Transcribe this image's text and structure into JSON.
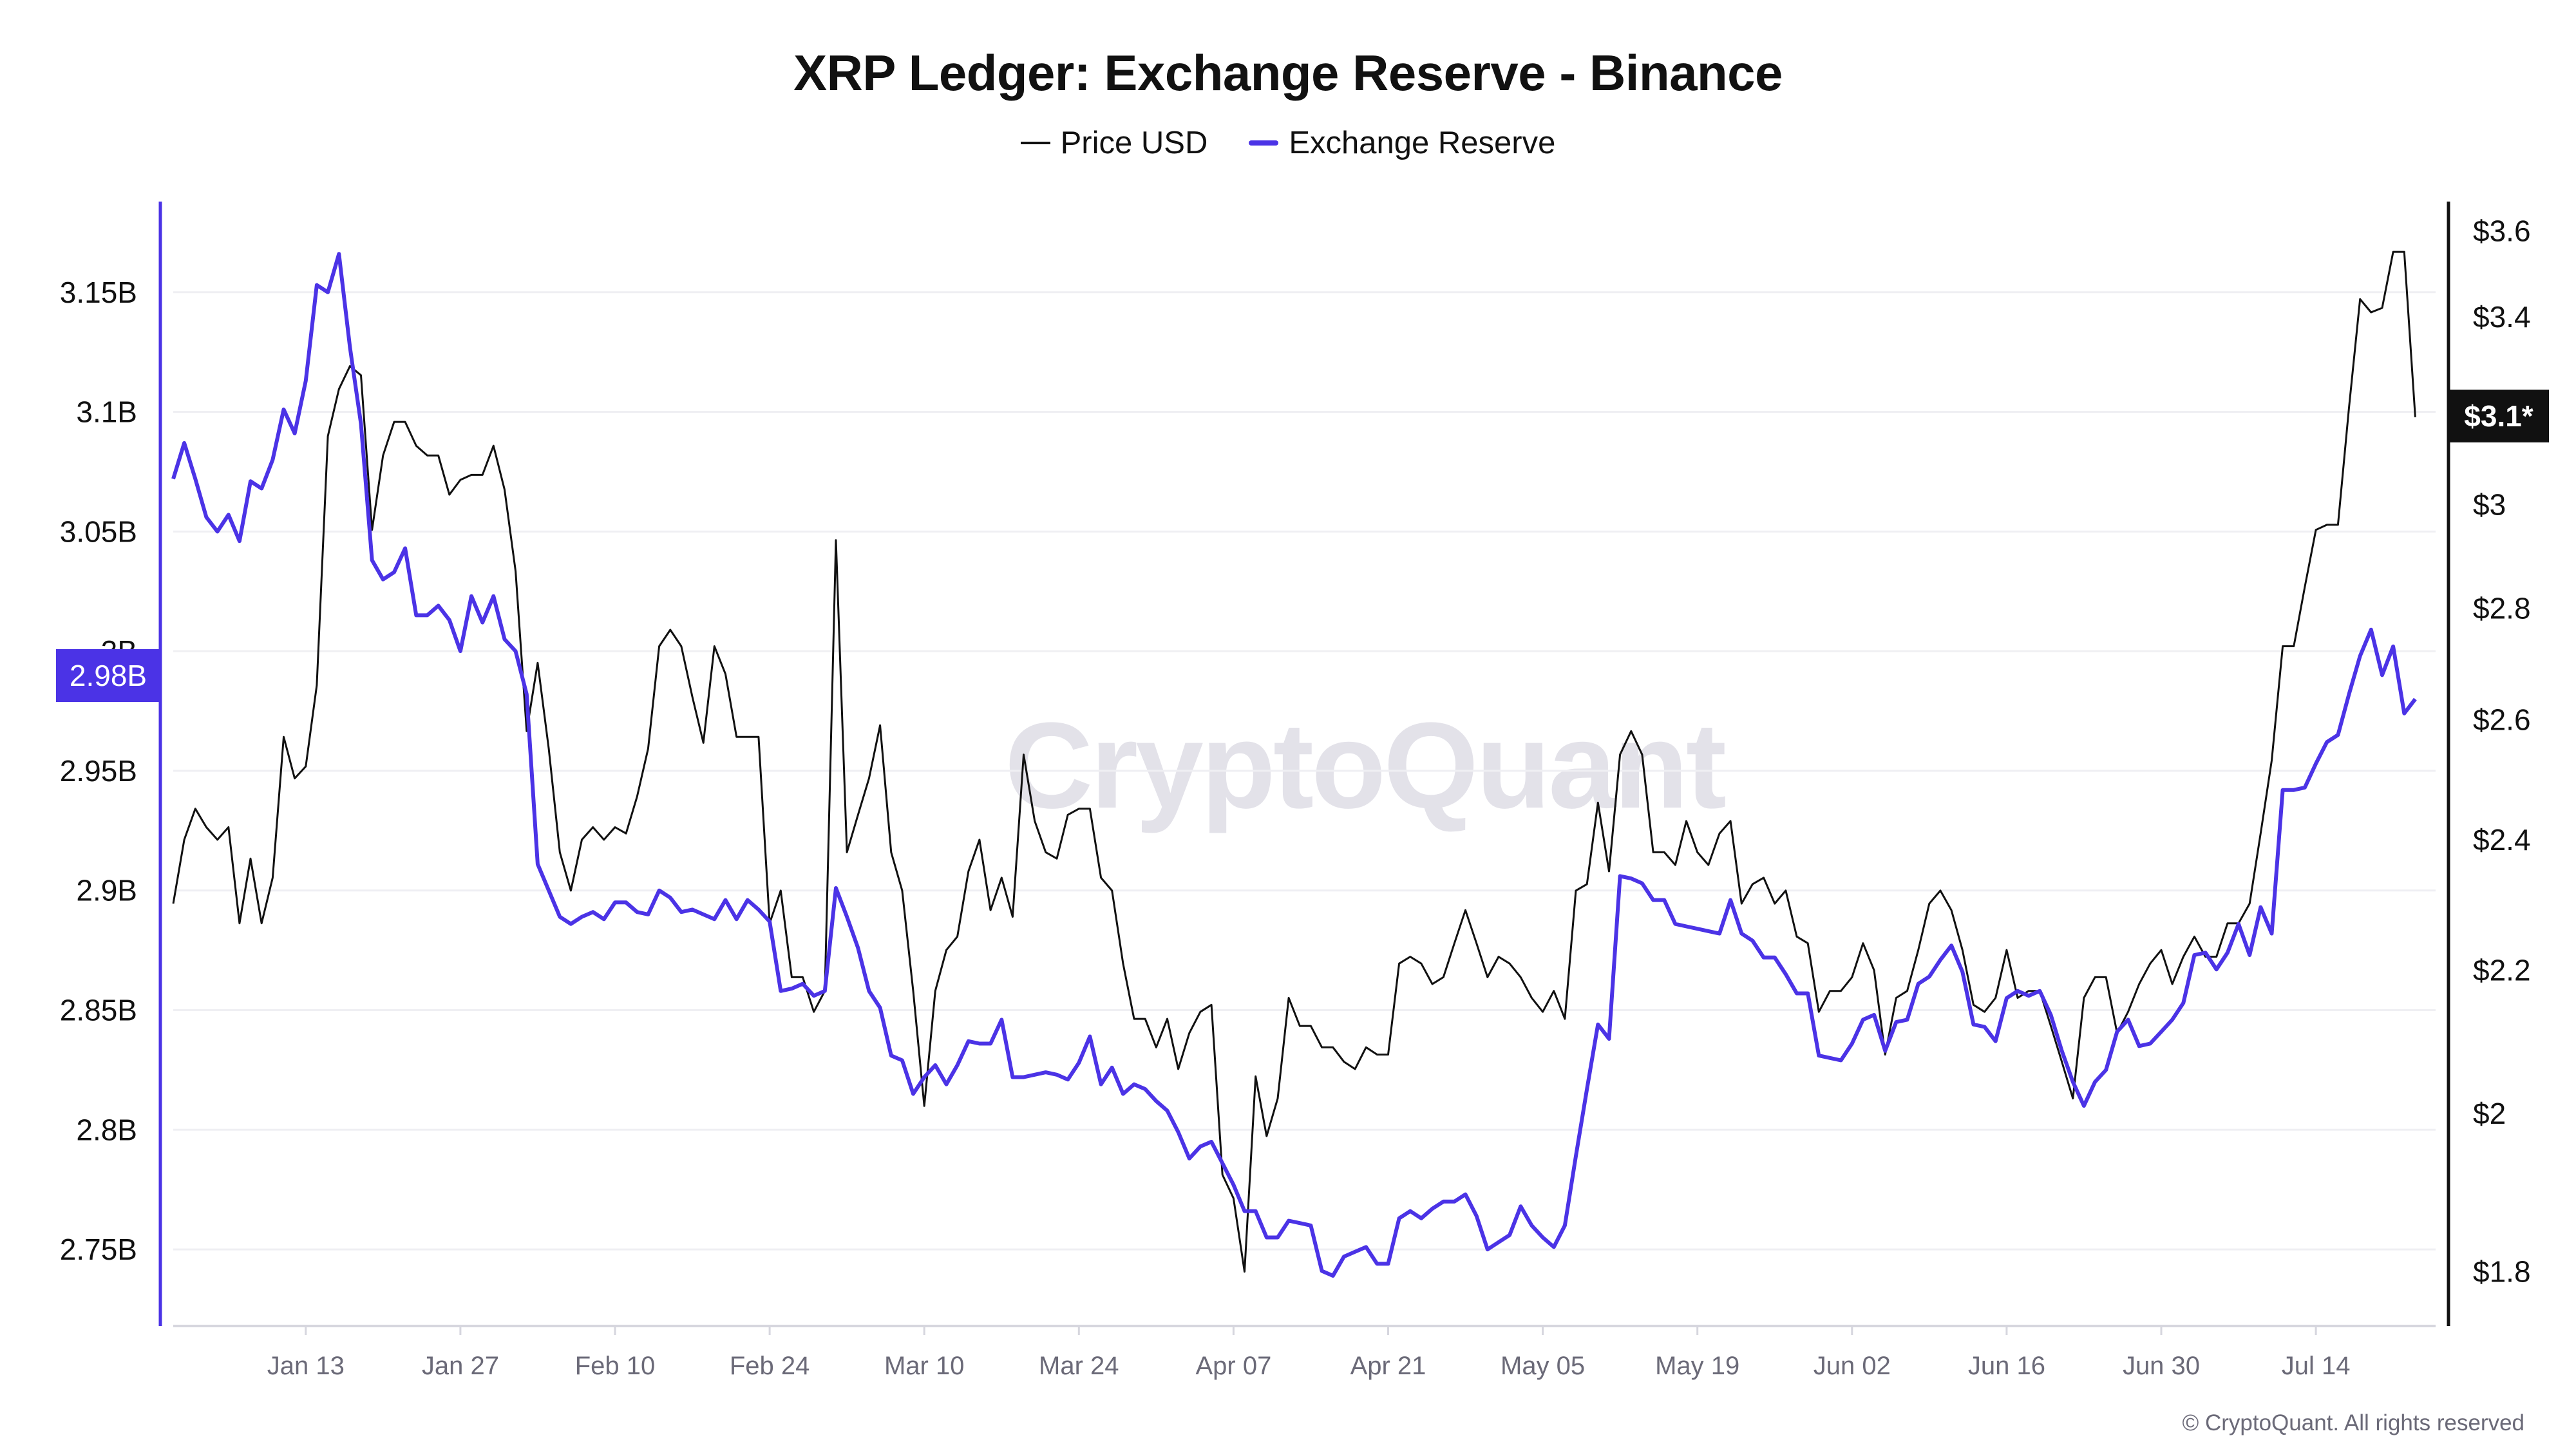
{
  "chart_data": {
    "type": "line",
    "title": "XRP Ledger: Exchange Reserve - Binance",
    "legend_position": "top-center",
    "grid": "horizontal",
    "watermark": "CryptoQuant",
    "copyright": "© CryptoQuant. All rights reserved",
    "colors": {
      "price": "#111111",
      "reserve": "#4b33e6"
    },
    "x_ticks": [
      "Jan 13",
      "Jan 27",
      "Feb 10",
      "Feb 24",
      "Mar 10",
      "Mar 24",
      "Apr 07",
      "Apr 21",
      "May 05",
      "May 19",
      "Jun 02",
      "Jun 16",
      "Jun 30",
      "Jul 14"
    ],
    "left_axis": {
      "ticks": [
        3.15,
        3.1,
        3.05,
        3.0,
        2.95,
        2.9,
        2.85,
        2.8,
        2.75
      ],
      "tick_labels": [
        "3.15B",
        "3.1B",
        "3.05B",
        "3B",
        "2.95B",
        "2.9B",
        "2.85B",
        "2.8B",
        "2.75B"
      ],
      "ylim": [
        2.718,
        3.186
      ],
      "unit": "B",
      "current_label": "2.98B"
    },
    "right_axis": {
      "scale": "log",
      "ticks": [
        3.6,
        3.4,
        3.0,
        2.8,
        2.6,
        2.4,
        2.2,
        2.0,
        1.8
      ],
      "tick_labels": [
        "$3.6",
        "$3.4",
        "$3",
        "$2.8",
        "$2.6",
        "$2.4",
        "$2.2",
        "$2",
        "$1.8"
      ],
      "ylim": [
        1.736,
        3.66
      ],
      "current_label": "$3.1*"
    },
    "x": [
      "Jan 1",
      "Jan 2",
      "Jan 3",
      "Jan 4",
      "Jan 5",
      "Jan 6",
      "Jan 7",
      "Jan 8",
      "Jan 9",
      "Jan 10",
      "Jan 11",
      "Jan 12",
      "Jan 13",
      "Jan 14",
      "Jan 15",
      "Jan 16",
      "Jan 17",
      "Jan 18",
      "Jan 19",
      "Jan 20",
      "Jan 21",
      "Jan 22",
      "Jan 23",
      "Jan 24",
      "Jan 25",
      "Jan 26",
      "Jan 27",
      "Jan 28",
      "Jan 29",
      "Jan 30",
      "Jan 31",
      "Feb 1",
      "Feb 2",
      "Feb 3",
      "Feb 4",
      "Feb 5",
      "Feb 6",
      "Feb 7",
      "Feb 8",
      "Feb 9",
      "Feb 10",
      "Feb 11",
      "Feb 12",
      "Feb 13",
      "Feb 14",
      "Feb 15",
      "Feb 16",
      "Feb 17",
      "Feb 18",
      "Feb 19",
      "Feb 20",
      "Feb 21",
      "Feb 22",
      "Feb 23",
      "Feb 24",
      "Feb 25",
      "Feb 26",
      "Feb 27",
      "Feb 28",
      "Mar 1",
      "Mar 2",
      "Mar 3",
      "Mar 4",
      "Mar 5",
      "Mar 6",
      "Mar 7",
      "Mar 8",
      "Mar 9",
      "Mar 10",
      "Mar 11",
      "Mar 12",
      "Mar 13",
      "Mar 14",
      "Mar 15",
      "Mar 16",
      "Mar 17",
      "Mar 18",
      "Mar 19",
      "Mar 20",
      "Mar 21",
      "Mar 22",
      "Mar 23",
      "Mar 24",
      "Mar 25",
      "Mar 26",
      "Mar 27",
      "Mar 28",
      "Mar 29",
      "Mar 30",
      "Mar 31",
      "Apr 1",
      "Apr 2",
      "Apr 3",
      "Apr 4",
      "Apr 5",
      "Apr 6",
      "Apr 7",
      "Apr 8",
      "Apr 9",
      "Apr 10",
      "Apr 11",
      "Apr 12",
      "Apr 13",
      "Apr 14",
      "Apr 15",
      "Apr 16",
      "Apr 17",
      "Apr 18",
      "Apr 19",
      "Apr 20",
      "Apr 21",
      "Apr 22",
      "Apr 23",
      "Apr 24",
      "Apr 25",
      "Apr 26",
      "Apr 27",
      "Apr 28",
      "Apr 29",
      "Apr 30",
      "May 1",
      "May 2",
      "May 3",
      "May 4",
      "May 5",
      "May 6",
      "May 7",
      "May 8",
      "May 9",
      "May 10",
      "May 11",
      "May 12",
      "May 13",
      "May 14",
      "May 15",
      "May 16",
      "May 17",
      "May 18",
      "May 19",
      "May 20",
      "May 21",
      "May 22",
      "May 23",
      "May 24",
      "May 25",
      "May 26",
      "May 27",
      "May 28",
      "May 29",
      "May 30",
      "May 31",
      "Jun 1",
      "Jun 2",
      "Jun 3",
      "Jun 4",
      "Jun 5",
      "Jun 6",
      "Jun 7",
      "Jun 8",
      "Jun 9",
      "Jun 10",
      "Jun 11",
      "Jun 12",
      "Jun 13",
      "Jun 14",
      "Jun 15",
      "Jun 16",
      "Jun 17",
      "Jun 18",
      "Jun 19",
      "Jun 20",
      "Jun 21",
      "Jun 22",
      "Jun 23",
      "Jun 24",
      "Jun 25",
      "Jun 26",
      "Jun 27",
      "Jun 28",
      "Jun 29",
      "Jun 30",
      "Jul 1",
      "Jul 2",
      "Jul 3",
      "Jul 4",
      "Jul 5",
      "Jul 6",
      "Jul 7",
      "Jul 8",
      "Jul 9",
      "Jul 10",
      "Jul 11",
      "Jul 12",
      "Jul 13",
      "Jul 14",
      "Jul 15",
      "Jul 16",
      "Jul 17",
      "Jul 18",
      "Jul 19",
      "Jul 20",
      "Jul 21",
      "Jul 22",
      "Jul 23"
    ],
    "series": [
      {
        "name": "Price USD",
        "axis": "right",
        "values": [
          2.3,
          2.4,
          2.45,
          2.42,
          2.4,
          2.42,
          2.27,
          2.37,
          2.27,
          2.34,
          2.57,
          2.5,
          2.52,
          2.66,
          3.14,
          3.24,
          3.29,
          3.27,
          2.95,
          3.1,
          3.17,
          3.17,
          3.12,
          3.1,
          3.1,
          3.02,
          3.05,
          3.06,
          3.06,
          3.12,
          3.03,
          2.87,
          2.58,
          2.7,
          2.55,
          2.38,
          2.32,
          2.4,
          2.42,
          2.4,
          2.42,
          2.41,
          2.47,
          2.55,
          2.73,
          2.76,
          2.73,
          2.64,
          2.56,
          2.73,
          2.68,
          2.57,
          2.57,
          2.57,
          2.27,
          2.32,
          2.19,
          2.19,
          2.14,
          2.17,
          2.93,
          2.38,
          2.44,
          2.5,
          2.59,
          2.38,
          2.32,
          2.17,
          2.01,
          2.17,
          2.23,
          2.25,
          2.35,
          2.4,
          2.29,
          2.34,
          2.28,
          2.54,
          2.43,
          2.38,
          2.37,
          2.44,
          2.45,
          2.45,
          2.34,
          2.32,
          2.21,
          2.13,
          2.13,
          2.09,
          2.13,
          2.06,
          2.11,
          2.14,
          2.15,
          1.92,
          1.89,
          1.8,
          2.05,
          1.97,
          2.02,
          2.16,
          2.12,
          2.12,
          2.09,
          2.09,
          2.07,
          2.06,
          2.09,
          2.08,
          2.08,
          2.21,
          2.22,
          2.21,
          2.18,
          2.19,
          2.24,
          2.29,
          2.24,
          2.19,
          2.22,
          2.21,
          2.19,
          2.16,
          2.14,
          2.17,
          2.13,
          2.32,
          2.33,
          2.46,
          2.35,
          2.54,
          2.58,
          2.54,
          2.38,
          2.38,
          2.36,
          2.43,
          2.38,
          2.36,
          2.41,
          2.43,
          2.3,
          2.33,
          2.34,
          2.3,
          2.32,
          2.25,
          2.24,
          2.14,
          2.17,
          2.17,
          2.19,
          2.24,
          2.2,
          2.08,
          2.16,
          2.17,
          2.23,
          2.3,
          2.32,
          2.29,
          2.23,
          2.15,
          2.14,
          2.16,
          2.23,
          2.16,
          2.17,
          2.17,
          2.12,
          2.07,
          2.02,
          2.16,
          2.19,
          2.19,
          2.11,
          2.14,
          2.18,
          2.21,
          2.23,
          2.18,
          2.22,
          2.25,
          2.22,
          2.22,
          2.27,
          2.27,
          2.3,
          2.41,
          2.53,
          2.73,
          2.73,
          2.84,
          2.95,
          2.96,
          2.96,
          3.2,
          3.44,
          3.41,
          3.42,
          3.55,
          3.55,
          3.18
        ]
      },
      {
        "name": "Exchange Reserve",
        "axis": "left",
        "values": [
          3.072,
          3.087,
          3.072,
          3.056,
          3.05,
          3.057,
          3.046,
          3.071,
          3.068,
          3.08,
          3.101,
          3.091,
          3.113,
          3.153,
          3.15,
          3.166,
          3.127,
          3.095,
          3.038,
          3.03,
          3.033,
          3.043,
          3.015,
          3.015,
          3.019,
          3.013,
          3.0,
          3.023,
          3.012,
          3.023,
          3.005,
          3.0,
          2.982,
          2.911,
          2.9,
          2.889,
          2.886,
          2.889,
          2.891,
          2.888,
          2.895,
          2.895,
          2.891,
          2.89,
          2.9,
          2.897,
          2.891,
          2.892,
          2.89,
          2.888,
          2.896,
          2.888,
          2.896,
          2.892,
          2.887,
          2.858,
          2.859,
          2.861,
          2.856,
          2.858,
          2.901,
          2.889,
          2.876,
          2.858,
          2.851,
          2.831,
          2.829,
          2.815,
          2.822,
          2.827,
          2.819,
          2.827,
          2.837,
          2.836,
          2.836,
          2.846,
          2.822,
          2.822,
          2.823,
          2.824,
          2.823,
          2.821,
          2.828,
          2.839,
          2.819,
          2.826,
          2.815,
          2.819,
          2.817,
          2.812,
          2.808,
          2.799,
          2.788,
          2.793,
          2.795,
          2.786,
          2.777,
          2.766,
          2.766,
          2.755,
          2.755,
          2.762,
          2.761,
          2.76,
          2.741,
          2.739,
          2.747,
          2.749,
          2.751,
          2.744,
          2.744,
          2.763,
          2.766,
          2.763,
          2.767,
          2.77,
          2.77,
          2.773,
          2.764,
          2.75,
          2.753,
          2.756,
          2.768,
          2.76,
          2.755,
          2.751,
          2.76,
          2.789,
          2.817,
          2.844,
          2.838,
          2.906,
          2.905,
          2.903,
          2.896,
          2.896,
          2.886,
          2.885,
          2.884,
          2.883,
          2.882,
          2.896,
          2.882,
          2.879,
          2.872,
          2.872,
          2.865,
          2.857,
          2.857,
          2.831,
          2.83,
          2.829,
          2.836,
          2.846,
          2.848,
          2.833,
          2.845,
          2.846,
          2.861,
          2.864,
          2.871,
          2.877,
          2.866,
          2.844,
          2.843,
          2.837,
          2.855,
          2.858,
          2.856,
          2.858,
          2.848,
          2.833,
          2.82,
          2.81,
          2.82,
          2.825,
          2.841,
          2.846,
          2.835,
          2.836,
          2.841,
          2.846,
          2.853,
          2.873,
          2.874,
          2.867,
          2.874,
          2.886,
          2.873,
          2.893,
          2.882,
          2.942,
          2.942,
          2.943,
          2.953,
          2.962,
          2.965,
          2.982,
          2.998,
          3.009,
          2.99,
          3.002,
          2.974,
          2.98
        ]
      }
    ]
  }
}
